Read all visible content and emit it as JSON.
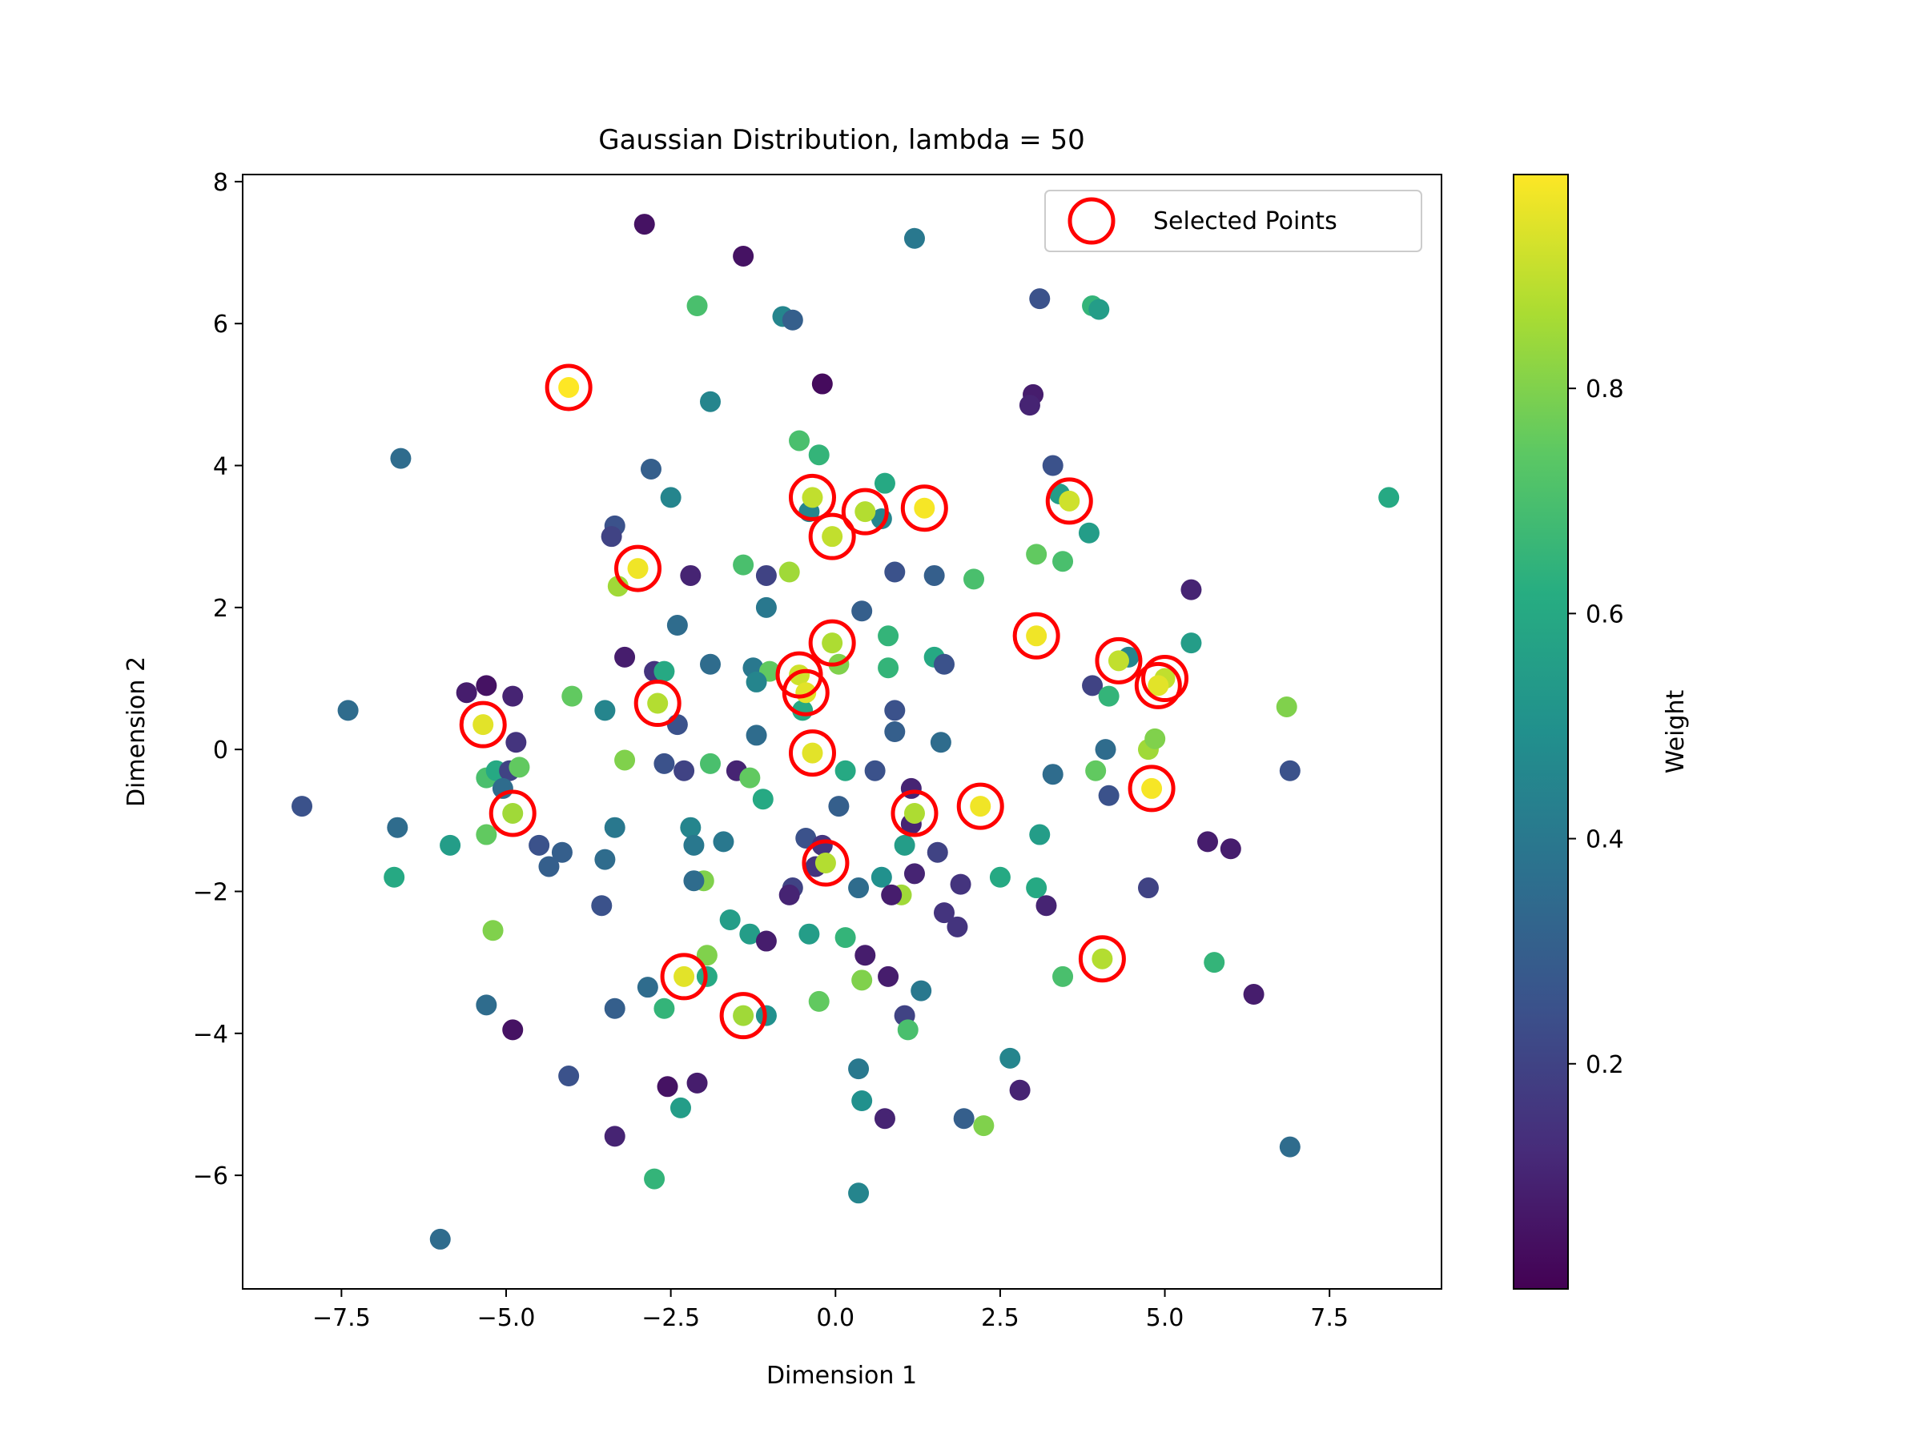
{
  "chart_data": {
    "type": "scatter",
    "title": "Gaussian Distribution, lambda = 50",
    "xlabel": "Dimension 1",
    "ylabel": "Dimension 2",
    "xlim": [
      -9.0,
      9.2
    ],
    "ylim": [
      -7.6,
      8.1
    ],
    "x_ticks": [
      -7.5,
      -5.0,
      -2.5,
      0.0,
      2.5,
      5.0,
      7.5
    ],
    "x_tick_labels": [
      "−7.5",
      "−5.0",
      "−2.5",
      "0.0",
      "2.5",
      "5.0",
      "7.5"
    ],
    "y_ticks": [
      -6,
      -4,
      -2,
      0,
      2,
      4,
      6,
      8
    ],
    "y_tick_labels": [
      "−6",
      "−4",
      "−2",
      "0",
      "2",
      "4",
      "6",
      "8"
    ],
    "legend": {
      "label": "Selected Points",
      "placement": "top-right"
    },
    "grid": false,
    "colorbar": {
      "label": "Weight",
      "colormap": "viridis",
      "range": [
        0.0,
        0.99
      ],
      "ticks": [
        0.2,
        0.4,
        0.6,
        0.8
      ],
      "tick_labels": [
        "0.2",
        "0.4",
        "0.6",
        "0.8"
      ]
    },
    "points": [
      {
        "x": -2.9,
        "y": 7.4,
        "w": 0.05
      },
      {
        "x": -1.4,
        "y": 6.95,
        "w": 0.05
      },
      {
        "x": 1.2,
        "y": 7.2,
        "w": 0.4
      },
      {
        "x": -2.1,
        "y": 6.25,
        "w": 0.7
      },
      {
        "x": -0.8,
        "y": 6.1,
        "w": 0.45
      },
      {
        "x": -0.65,
        "y": 6.05,
        "w": 0.3
      },
      {
        "x": 3.1,
        "y": 6.35,
        "w": 0.25
      },
      {
        "x": 3.9,
        "y": 6.25,
        "w": 0.65
      },
      {
        "x": 4.0,
        "y": 6.2,
        "w": 0.55
      },
      {
        "x": -0.2,
        "y": 5.15,
        "w": 0.03
      },
      {
        "x": 3.0,
        "y": 5.0,
        "w": 0.08
      },
      {
        "x": 2.95,
        "y": 4.85,
        "w": 0.1
      },
      {
        "x": -1.9,
        "y": 4.9,
        "w": 0.45
      },
      {
        "x": -6.6,
        "y": 4.1,
        "w": 0.35
      },
      {
        "x": -0.55,
        "y": 4.35,
        "w": 0.7
      },
      {
        "x": -0.25,
        "y": 4.15,
        "w": 0.65
      },
      {
        "x": -2.8,
        "y": 3.95,
        "w": 0.3
      },
      {
        "x": 3.3,
        "y": 4.0,
        "w": 0.25
      },
      {
        "x": 0.75,
        "y": 3.75,
        "w": 0.6
      },
      {
        "x": -2.5,
        "y": 3.55,
        "w": 0.45
      },
      {
        "x": 8.4,
        "y": 3.55,
        "w": 0.6
      },
      {
        "x": -0.4,
        "y": 3.35,
        "w": 0.45
      },
      {
        "x": 0.7,
        "y": 3.25,
        "w": 0.45
      },
      {
        "x": 3.4,
        "y": 3.6,
        "w": 0.55
      },
      {
        "x": -3.35,
        "y": 3.15,
        "w": 0.25
      },
      {
        "x": -3.4,
        "y": 3.0,
        "w": 0.2
      },
      {
        "x": 3.85,
        "y": 3.05,
        "w": 0.55
      },
      {
        "x": 3.05,
        "y": 2.75,
        "w": 0.75
      },
      {
        "x": 3.45,
        "y": 2.65,
        "w": 0.7
      },
      {
        "x": -2.2,
        "y": 2.45,
        "w": 0.1
      },
      {
        "x": -1.4,
        "y": 2.6,
        "w": 0.7
      },
      {
        "x": -1.05,
        "y": 2.45,
        "w": 0.2
      },
      {
        "x": -0.7,
        "y": 2.5,
        "w": 0.85
      },
      {
        "x": 0.9,
        "y": 2.5,
        "w": 0.25
      },
      {
        "x": 1.5,
        "y": 2.45,
        "w": 0.3
      },
      {
        "x": 2.1,
        "y": 2.4,
        "w": 0.7
      },
      {
        "x": -3.3,
        "y": 2.3,
        "w": 0.85
      },
      {
        "x": 5.4,
        "y": 2.25,
        "w": 0.1
      },
      {
        "x": -1.05,
        "y": 2.0,
        "w": 0.4
      },
      {
        "x": 0.4,
        "y": 1.95,
        "w": 0.3
      },
      {
        "x": -2.4,
        "y": 1.75,
        "w": 0.35
      },
      {
        "x": 0.8,
        "y": 1.6,
        "w": 0.65
      },
      {
        "x": 5.4,
        "y": 1.5,
        "w": 0.55
      },
      {
        "x": 4.45,
        "y": 1.3,
        "w": 0.45
      },
      {
        "x": -3.2,
        "y": 1.3,
        "w": 0.08
      },
      {
        "x": -1.9,
        "y": 1.2,
        "w": 0.35
      },
      {
        "x": -1.25,
        "y": 1.15,
        "w": 0.4
      },
      {
        "x": -1.0,
        "y": 1.1,
        "w": 0.75
      },
      {
        "x": 0.05,
        "y": 1.2,
        "w": 0.8
      },
      {
        "x": 0.8,
        "y": 1.15,
        "w": 0.65
      },
      {
        "x": 1.5,
        "y": 1.3,
        "w": 0.6
      },
      {
        "x": 1.65,
        "y": 1.2,
        "w": 0.25
      },
      {
        "x": -2.75,
        "y": 1.1,
        "w": 0.15
      },
      {
        "x": -2.6,
        "y": 1.1,
        "w": 0.6
      },
      {
        "x": -1.2,
        "y": 0.95,
        "w": 0.45
      },
      {
        "x": 3.9,
        "y": 0.9,
        "w": 0.2
      },
      {
        "x": 4.15,
        "y": 0.75,
        "w": 0.65
      },
      {
        "x": -5.3,
        "y": 0.9,
        "w": 0.05
      },
      {
        "x": -5.6,
        "y": 0.8,
        "w": 0.08
      },
      {
        "x": -4.9,
        "y": 0.75,
        "w": 0.1
      },
      {
        "x": -4.0,
        "y": 0.75,
        "w": 0.75
      },
      {
        "x": -7.4,
        "y": 0.55,
        "w": 0.35
      },
      {
        "x": -3.5,
        "y": 0.55,
        "w": 0.45
      },
      {
        "x": -0.5,
        "y": 0.55,
        "w": 0.6
      },
      {
        "x": 0.9,
        "y": 0.55,
        "w": 0.25
      },
      {
        "x": 6.85,
        "y": 0.6,
        "w": 0.8
      },
      {
        "x": -2.4,
        "y": 0.35,
        "w": 0.25
      },
      {
        "x": -4.85,
        "y": 0.1,
        "w": 0.15
      },
      {
        "x": -1.2,
        "y": 0.2,
        "w": 0.35
      },
      {
        "x": 0.9,
        "y": 0.25,
        "w": 0.3
      },
      {
        "x": 1.6,
        "y": 0.1,
        "w": 0.35
      },
      {
        "x": 4.1,
        "y": 0.0,
        "w": 0.35
      },
      {
        "x": 4.75,
        "y": 0.0,
        "w": 0.85
      },
      {
        "x": 4.85,
        "y": 0.15,
        "w": 0.8
      },
      {
        "x": -3.2,
        "y": -0.15,
        "w": 0.8
      },
      {
        "x": -2.6,
        "y": -0.2,
        "w": 0.25
      },
      {
        "x": -1.9,
        "y": -0.2,
        "w": 0.7
      },
      {
        "x": -2.3,
        "y": -0.3,
        "w": 0.2
      },
      {
        "x": -1.5,
        "y": -0.3,
        "w": 0.1
      },
      {
        "x": -1.3,
        "y": -0.4,
        "w": 0.75
      },
      {
        "x": 0.15,
        "y": -0.3,
        "w": 0.6
      },
      {
        "x": 0.6,
        "y": -0.3,
        "w": 0.25
      },
      {
        "x": 3.3,
        "y": -0.35,
        "w": 0.35
      },
      {
        "x": 3.95,
        "y": -0.3,
        "w": 0.75
      },
      {
        "x": 6.9,
        "y": -0.3,
        "w": 0.25
      },
      {
        "x": -5.3,
        "y": -0.4,
        "w": 0.7
      },
      {
        "x": -5.15,
        "y": -0.3,
        "w": 0.6
      },
      {
        "x": -4.95,
        "y": -0.3,
        "w": 0.2
      },
      {
        "x": -4.8,
        "y": -0.25,
        "w": 0.75
      },
      {
        "x": -5.05,
        "y": -0.55,
        "w": 0.35
      },
      {
        "x": -1.1,
        "y": -0.7,
        "w": 0.6
      },
      {
        "x": 1.15,
        "y": -0.55,
        "w": 0.1
      },
      {
        "x": 4.15,
        "y": -0.65,
        "w": 0.25
      },
      {
        "x": -8.1,
        "y": -0.8,
        "w": 0.25
      },
      {
        "x": 0.05,
        "y": -0.8,
        "w": 0.3
      },
      {
        "x": -6.65,
        "y": -1.1,
        "w": 0.35
      },
      {
        "x": -3.35,
        "y": -1.1,
        "w": 0.4
      },
      {
        "x": -2.2,
        "y": -1.1,
        "w": 0.45
      },
      {
        "x": 1.15,
        "y": -1.05,
        "w": 0.1
      },
      {
        "x": 3.1,
        "y": -1.2,
        "w": 0.55
      },
      {
        "x": -5.3,
        "y": -1.2,
        "w": 0.75
      },
      {
        "x": -2.15,
        "y": -1.35,
        "w": 0.4
      },
      {
        "x": -1.7,
        "y": -1.3,
        "w": 0.4
      },
      {
        "x": -0.45,
        "y": -1.25,
        "w": 0.25
      },
      {
        "x": -0.2,
        "y": -1.35,
        "w": 0.15
      },
      {
        "x": 1.05,
        "y": -1.35,
        "w": 0.55
      },
      {
        "x": 5.65,
        "y": -1.3,
        "w": 0.08
      },
      {
        "x": 6.0,
        "y": -1.4,
        "w": 0.08
      },
      {
        "x": -5.85,
        "y": -1.35,
        "w": 0.55
      },
      {
        "x": -4.5,
        "y": -1.35,
        "w": 0.25
      },
      {
        "x": -4.15,
        "y": -1.45,
        "w": 0.3
      },
      {
        "x": -3.5,
        "y": -1.55,
        "w": 0.35
      },
      {
        "x": 1.55,
        "y": -1.45,
        "w": 0.2
      },
      {
        "x": -4.35,
        "y": -1.65,
        "w": 0.3
      },
      {
        "x": -0.3,
        "y": -1.65,
        "w": 0.15
      },
      {
        "x": 0.7,
        "y": -1.8,
        "w": 0.5
      },
      {
        "x": 1.2,
        "y": -1.75,
        "w": 0.1
      },
      {
        "x": -6.7,
        "y": -1.8,
        "w": 0.6
      },
      {
        "x": -2.0,
        "y": -1.85,
        "w": 0.8
      },
      {
        "x": -2.15,
        "y": -1.85,
        "w": 0.35
      },
      {
        "x": 2.5,
        "y": -1.8,
        "w": 0.6
      },
      {
        "x": -0.65,
        "y": -1.95,
        "w": 0.2
      },
      {
        "x": -0.7,
        "y": -2.05,
        "w": 0.1
      },
      {
        "x": 0.35,
        "y": -1.95,
        "w": 0.35
      },
      {
        "x": 1.0,
        "y": -2.05,
        "w": 0.85
      },
      {
        "x": 0.85,
        "y": -2.05,
        "w": 0.08
      },
      {
        "x": 1.9,
        "y": -1.9,
        "w": 0.15
      },
      {
        "x": 3.05,
        "y": -1.95,
        "w": 0.6
      },
      {
        "x": 4.75,
        "y": -1.95,
        "w": 0.2
      },
      {
        "x": -3.55,
        "y": -2.2,
        "w": 0.25
      },
      {
        "x": 3.2,
        "y": -2.2,
        "w": 0.1
      },
      {
        "x": 1.65,
        "y": -2.3,
        "w": 0.15
      },
      {
        "x": -1.6,
        "y": -2.4,
        "w": 0.55
      },
      {
        "x": 1.85,
        "y": -2.5,
        "w": 0.15
      },
      {
        "x": -5.2,
        "y": -2.55,
        "w": 0.8
      },
      {
        "x": -1.3,
        "y": -2.6,
        "w": 0.55
      },
      {
        "x": -0.4,
        "y": -2.6,
        "w": 0.55
      },
      {
        "x": 0.15,
        "y": -2.65,
        "w": 0.65
      },
      {
        "x": -1.05,
        "y": -2.7,
        "w": 0.08
      },
      {
        "x": 0.45,
        "y": -2.9,
        "w": 0.08
      },
      {
        "x": -1.95,
        "y": -2.9,
        "w": 0.8
      },
      {
        "x": 5.75,
        "y": -3.0,
        "w": 0.65
      },
      {
        "x": 0.4,
        "y": -3.25,
        "w": 0.8
      },
      {
        "x": 0.8,
        "y": -3.2,
        "w": 0.08
      },
      {
        "x": 3.45,
        "y": -3.2,
        "w": 0.7
      },
      {
        "x": -1.95,
        "y": -3.2,
        "w": 0.6
      },
      {
        "x": -2.85,
        "y": -3.35,
        "w": 0.35
      },
      {
        "x": 1.3,
        "y": -3.4,
        "w": 0.4
      },
      {
        "x": 6.35,
        "y": -3.45,
        "w": 0.08
      },
      {
        "x": -0.25,
        "y": -3.55,
        "w": 0.75
      },
      {
        "x": -5.3,
        "y": -3.6,
        "w": 0.35
      },
      {
        "x": -3.35,
        "y": -3.65,
        "w": 0.3
      },
      {
        "x": -2.6,
        "y": -3.65,
        "w": 0.65
      },
      {
        "x": -1.05,
        "y": -3.75,
        "w": 0.5
      },
      {
        "x": 1.05,
        "y": -3.75,
        "w": 0.2
      },
      {
        "x": -4.9,
        "y": -3.95,
        "w": 0.05
      },
      {
        "x": 1.1,
        "y": -3.95,
        "w": 0.7
      },
      {
        "x": 2.65,
        "y": -4.35,
        "w": 0.45
      },
      {
        "x": 0.35,
        "y": -4.5,
        "w": 0.4
      },
      {
        "x": -4.05,
        "y": -4.6,
        "w": 0.25
      },
      {
        "x": -2.55,
        "y": -4.75,
        "w": 0.05
      },
      {
        "x": -2.1,
        "y": -4.7,
        "w": 0.08
      },
      {
        "x": 2.8,
        "y": -4.8,
        "w": 0.1
      },
      {
        "x": 0.4,
        "y": -4.95,
        "w": 0.5
      },
      {
        "x": -2.35,
        "y": -5.05,
        "w": 0.55
      },
      {
        "x": 1.95,
        "y": -5.2,
        "w": 0.3
      },
      {
        "x": 0.75,
        "y": -5.2,
        "w": 0.1
      },
      {
        "x": 2.25,
        "y": -5.3,
        "w": 0.8
      },
      {
        "x": -3.35,
        "y": -5.45,
        "w": 0.1
      },
      {
        "x": 6.9,
        "y": -5.6,
        "w": 0.35
      },
      {
        "x": -2.75,
        "y": -6.05,
        "w": 0.65
      },
      {
        "x": 0.35,
        "y": -6.25,
        "w": 0.45
      },
      {
        "x": -6.0,
        "y": -6.9,
        "w": 0.35
      }
    ],
    "selected_points": [
      {
        "x": -4.05,
        "y": 5.1,
        "w": 0.99
      },
      {
        "x": -0.35,
        "y": 3.55,
        "w": 0.9
      },
      {
        "x": 0.45,
        "y": 3.35,
        "w": 0.88
      },
      {
        "x": 1.35,
        "y": 3.4,
        "w": 0.98
      },
      {
        "x": 3.55,
        "y": 3.5,
        "w": 0.92
      },
      {
        "x": -0.05,
        "y": 3.0,
        "w": 0.9
      },
      {
        "x": -3.0,
        "y": 2.55,
        "w": 0.97
      },
      {
        "x": -0.05,
        "y": 1.5,
        "w": 0.87
      },
      {
        "x": 3.05,
        "y": 1.6,
        "w": 0.97
      },
      {
        "x": 4.3,
        "y": 1.25,
        "w": 0.9
      },
      {
        "x": -0.55,
        "y": 1.05,
        "w": 0.92
      },
      {
        "x": 5.0,
        "y": 1.0,
        "w": 0.9
      },
      {
        "x": 4.9,
        "y": 0.9,
        "w": 0.95
      },
      {
        "x": -0.45,
        "y": 0.8,
        "w": 0.95
      },
      {
        "x": -2.7,
        "y": 0.65,
        "w": 0.88
      },
      {
        "x": -5.35,
        "y": 0.35,
        "w": 0.95
      },
      {
        "x": -0.35,
        "y": -0.05,
        "w": 0.95
      },
      {
        "x": 4.8,
        "y": -0.55,
        "w": 0.98
      },
      {
        "x": -4.9,
        "y": -0.9,
        "w": 0.85
      },
      {
        "x": 1.2,
        "y": -0.9,
        "w": 0.87
      },
      {
        "x": 2.2,
        "y": -0.8,
        "w": 0.97
      },
      {
        "x": -0.15,
        "y": -1.6,
        "w": 0.88
      },
      {
        "x": 4.05,
        "y": -2.95,
        "w": 0.88
      },
      {
        "x": -2.3,
        "y": -3.2,
        "w": 0.95
      },
      {
        "x": -1.4,
        "y": -3.75,
        "w": 0.85
      }
    ]
  }
}
